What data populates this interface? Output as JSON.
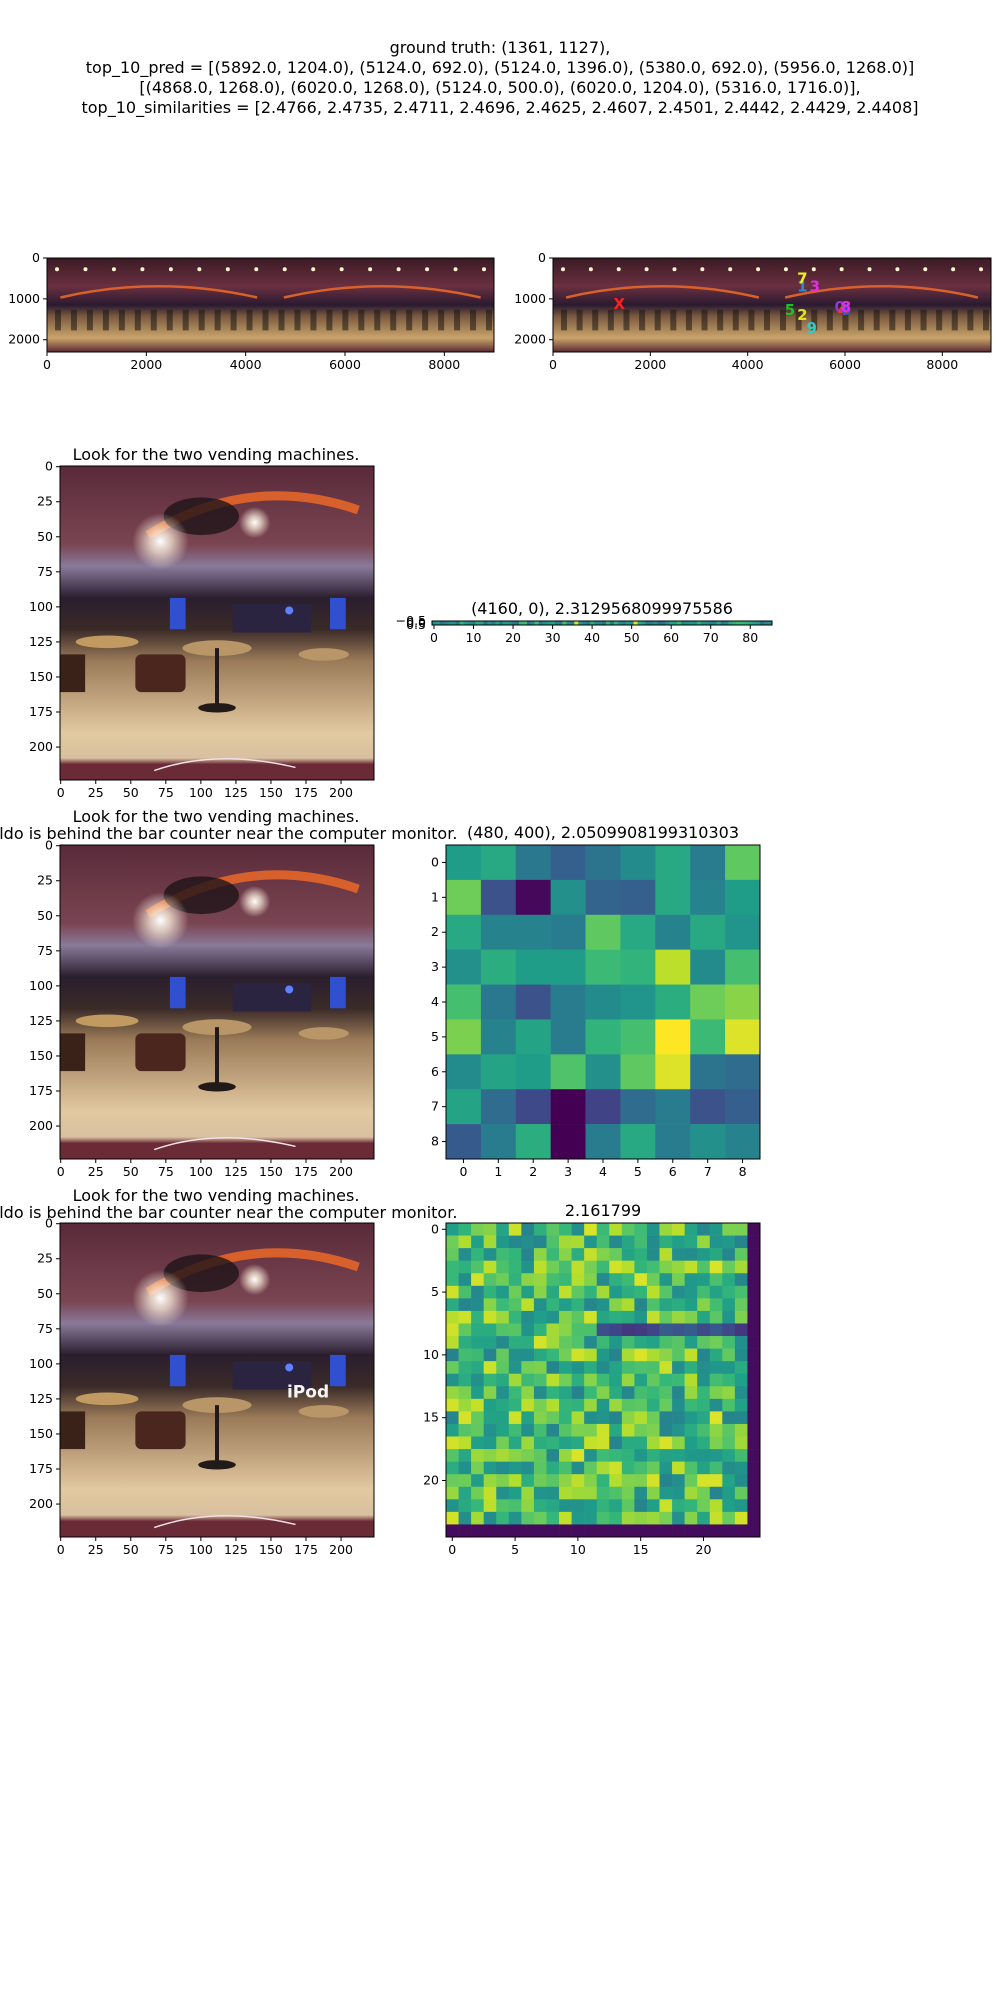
{
  "header": {
    "line1": "ground truth: (1361, 1127),",
    "line2": "top_10_pred = [(5892.0, 1204.0), (5124.0, 692.0), (5124.0, 1396.0), (5380.0, 692.0), (5956.0, 1268.0)]",
    "line3": "[(4868.0, 1268.0), (6020.0, 1268.0), (5124.0, 500.0), (6020.0, 1204.0), (5316.0, 1716.0)],",
    "line4": "top_10_similarities = [2.4766, 2.4735, 2.4711, 2.4696, 2.4625, 2.4607, 2.4501, 2.4442, 2.4429, 2.4408]"
  },
  "colors": {
    "panorama_ceiling": "#5a2a3a",
    "panorama_floor": "#caa46a",
    "accent_orange": "#d8602a",
    "viridis_low": "#440154",
    "viridis_high": "#fde725"
  },
  "chart_data": [
    {
      "type": "image",
      "name": "panorama",
      "xticks": [
        "0",
        "2000",
        "4000",
        "6000",
        "8000"
      ],
      "yticks": [
        "0",
        "1000",
        "2000"
      ]
    },
    {
      "type": "scatter",
      "name": "panorama-predictions",
      "xticks": [
        "0",
        "2000",
        "4000",
        "6000",
        "8000"
      ],
      "yticks": [
        "0",
        "1000",
        "2000"
      ],
      "points": [
        {
          "label": "0",
          "x": 5892,
          "y": 1204,
          "color": "#8b3ad6"
        },
        {
          "label": "1",
          "x": 5124,
          "y": 692,
          "color": "#2a8ad8"
        },
        {
          "label": "2",
          "x": 5124,
          "y": 1396,
          "color": "#e0e020"
        },
        {
          "label": "3",
          "x": 5380,
          "y": 692,
          "color": "#e030e0"
        },
        {
          "label": "4",
          "x": 5956,
          "y": 1268,
          "color": "#ff3030"
        },
        {
          "label": "5",
          "x": 4868,
          "y": 1268,
          "color": "#20c020"
        },
        {
          "label": "6",
          "x": 6020,
          "y": 1268,
          "color": "#2a5ae0"
        },
        {
          "label": "7",
          "x": 5124,
          "y": 500,
          "color": "#f0f020"
        },
        {
          "label": "8",
          "x": 6020,
          "y": 1204,
          "color": "#e030e0"
        },
        {
          "label": "9",
          "x": 5316,
          "y": 1716,
          "color": "#20d0d0"
        },
        {
          "label": "X",
          "x": 1361,
          "y": 1127,
          "color": "#ff2020"
        }
      ]
    },
    {
      "type": "image",
      "name": "crop-1",
      "title": "Look for the two vending machines.",
      "xticks": [
        "0",
        "25",
        "50",
        "75",
        "100",
        "125",
        "150",
        "175",
        "200"
      ],
      "yticks": [
        "0",
        "25",
        "50",
        "75",
        "100",
        "125",
        "150",
        "175",
        "200"
      ]
    },
    {
      "type": "heatmap",
      "name": "strip-heatmap",
      "title": "(4160, 0), 2.3129568099975586",
      "xticks": [
        "0",
        "10",
        "20",
        "30",
        "40",
        "50",
        "60",
        "70",
        "80"
      ],
      "yticks": [
        "−0.5",
        "0.0",
        "0.5"
      ]
    },
    {
      "type": "image",
      "name": "crop-2",
      "title_line1": "Look for the two vending machines.",
      "title_line2": "Waldo is behind the bar counter near the computer monitor.",
      "xticks": [
        "0",
        "25",
        "50",
        "75",
        "100",
        "125",
        "150",
        "175",
        "200"
      ],
      "yticks": [
        "0",
        "25",
        "50",
        "75",
        "100",
        "125",
        "150",
        "175",
        "200"
      ]
    },
    {
      "type": "heatmap",
      "name": "grid-9x9",
      "title": "(480, 400), 2.0509908199310303",
      "xticks": [
        "0",
        "1",
        "2",
        "3",
        "4",
        "5",
        "6",
        "7",
        "8"
      ],
      "yticks": [
        "0",
        "1",
        "2",
        "3",
        "4",
        "5",
        "6",
        "7",
        "8"
      ],
      "values": [
        [
          0.55,
          0.6,
          0.4,
          0.3,
          0.38,
          0.48,
          0.6,
          0.42,
          0.75
        ],
        [
          0.78,
          0.25,
          0.02,
          0.5,
          0.32,
          0.3,
          0.6,
          0.45,
          0.55
        ],
        [
          0.6,
          0.45,
          0.45,
          0.42,
          0.75,
          0.6,
          0.45,
          0.6,
          0.52
        ],
        [
          0.5,
          0.62,
          0.55,
          0.55,
          0.68,
          0.65,
          0.9,
          0.48,
          0.7
        ],
        [
          0.7,
          0.4,
          0.25,
          0.42,
          0.48,
          0.52,
          0.62,
          0.78,
          0.82
        ],
        [
          0.8,
          0.45,
          0.58,
          0.42,
          0.65,
          0.7,
          1.0,
          0.68,
          0.95
        ],
        [
          0.48,
          0.58,
          0.55,
          0.72,
          0.5,
          0.75,
          0.95,
          0.38,
          0.35
        ],
        [
          0.58,
          0.35,
          0.22,
          0.0,
          0.2,
          0.35,
          0.42,
          0.25,
          0.3
        ],
        [
          0.28,
          0.42,
          0.62,
          0.0,
          0.42,
          0.6,
          0.42,
          0.5,
          0.45
        ]
      ]
    },
    {
      "type": "image",
      "name": "crop-3",
      "title_line1": "Look for the two vending machines.",
      "title_line2": "Waldo is behind the bar counter near the computer monitor.",
      "annotation": "iPod",
      "xticks": [
        "0",
        "25",
        "50",
        "75",
        "100",
        "125",
        "150",
        "175",
        "200"
      ],
      "yticks": [
        "0",
        "25",
        "50",
        "75",
        "100",
        "125",
        "150",
        "175",
        "200"
      ]
    },
    {
      "type": "heatmap",
      "name": "grid-25x25",
      "title": "2.161799",
      "xticks": [
        "0",
        "5",
        "10",
        "15",
        "20"
      ],
      "yticks": [
        "0",
        "5",
        "10",
        "15",
        "20"
      ]
    }
  ]
}
